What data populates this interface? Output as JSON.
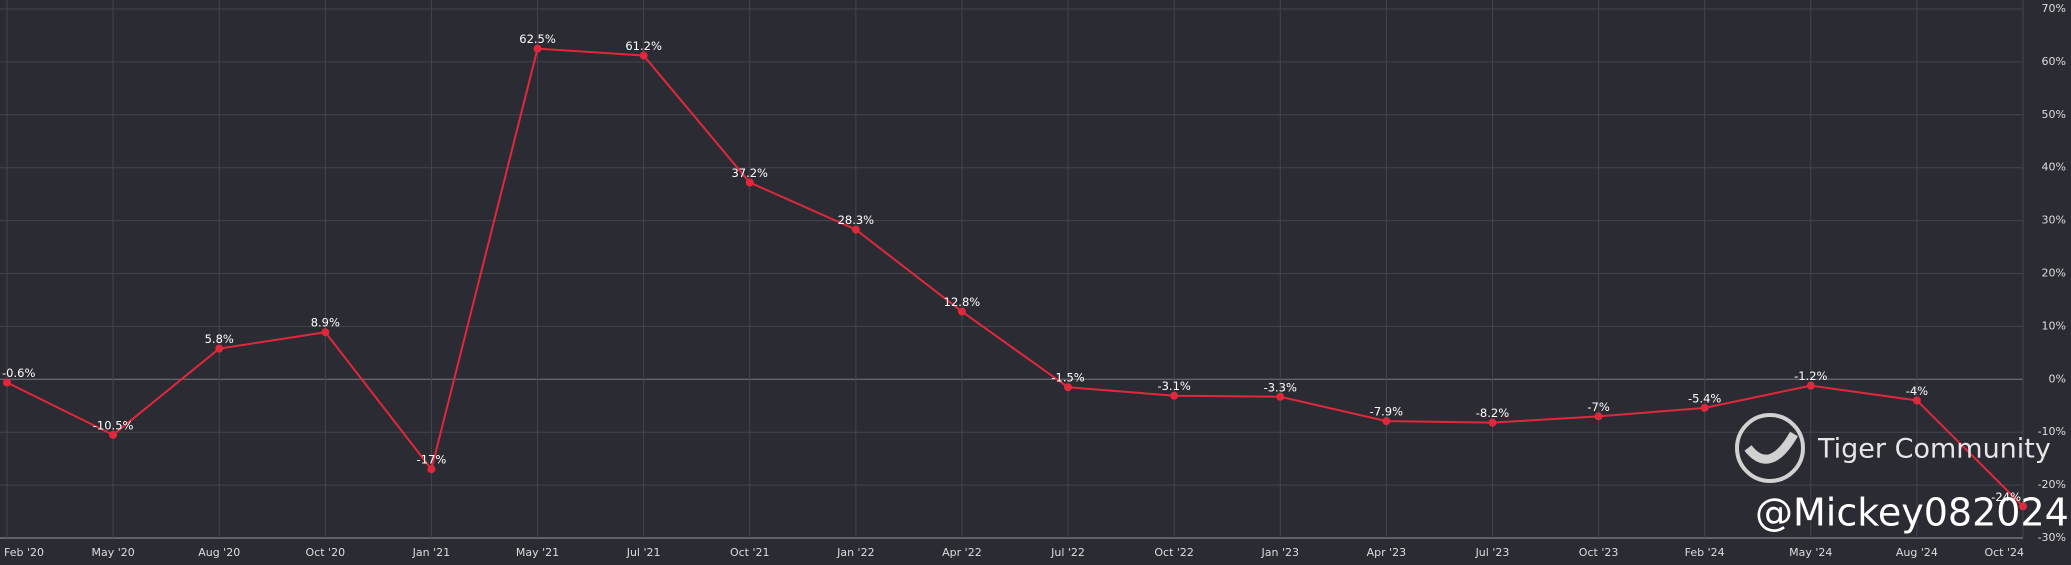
{
  "chart_data": {
    "type": "line",
    "categories": [
      "Feb '20",
      "May '20",
      "Aug '20",
      "Oct '20",
      "Jan '21",
      "May '21",
      "Jul '21",
      "Oct '21",
      "Jan '22",
      "Apr '22",
      "Jul '22",
      "Oct '22",
      "Jan '23",
      "Apr '23",
      "Jul '23",
      "Oct '23",
      "Feb '24",
      "May '24",
      "Aug '24",
      "Oct '24"
    ],
    "series": [
      {
        "color": "#e0283c",
        "values": [
          -0.6,
          -10.5,
          5.8,
          8.9,
          -17,
          62.5,
          61.2,
          37.2,
          28.3,
          12.8,
          -1.5,
          -3.1,
          -3.3,
          -7.9,
          -8.2,
          -7,
          -5.4,
          -1.2,
          -4,
          -24
        ],
        "value_labels": [
          "-0.6%",
          "-10.5%",
          "5.8%",
          "8.9%",
          "-17%",
          "62.5%",
          "61.2%",
          "37.2%",
          "28.3%",
          "12.8%",
          "-1.5%",
          "-3.1%",
          "-3.3%",
          "-7.9%",
          "-8.2%",
          "-7%",
          "-5.4%",
          "-1.2%",
          "-4%",
          "-24%"
        ]
      }
    ],
    "ylim": [
      -30,
      70
    ],
    "yticks": [
      {
        "value": -30,
        "label": "-30%"
      },
      {
        "value": -20,
        "label": "-20%"
      },
      {
        "value": -10,
        "label": "-10%"
      },
      {
        "value": 0,
        "label": "0%"
      },
      {
        "value": 10,
        "label": "10%"
      },
      {
        "value": 20,
        "label": "20%"
      },
      {
        "value": 30,
        "label": "30%"
      },
      {
        "value": 40,
        "label": "40%"
      },
      {
        "value": 50,
        "label": "50%"
      },
      {
        "value": 60,
        "label": "60%"
      },
      {
        "value": 70,
        "label": "70%"
      }
    ],
    "grid": true,
    "watermark": [
      "Tiger Community",
      "@Mickey082024"
    ]
  }
}
